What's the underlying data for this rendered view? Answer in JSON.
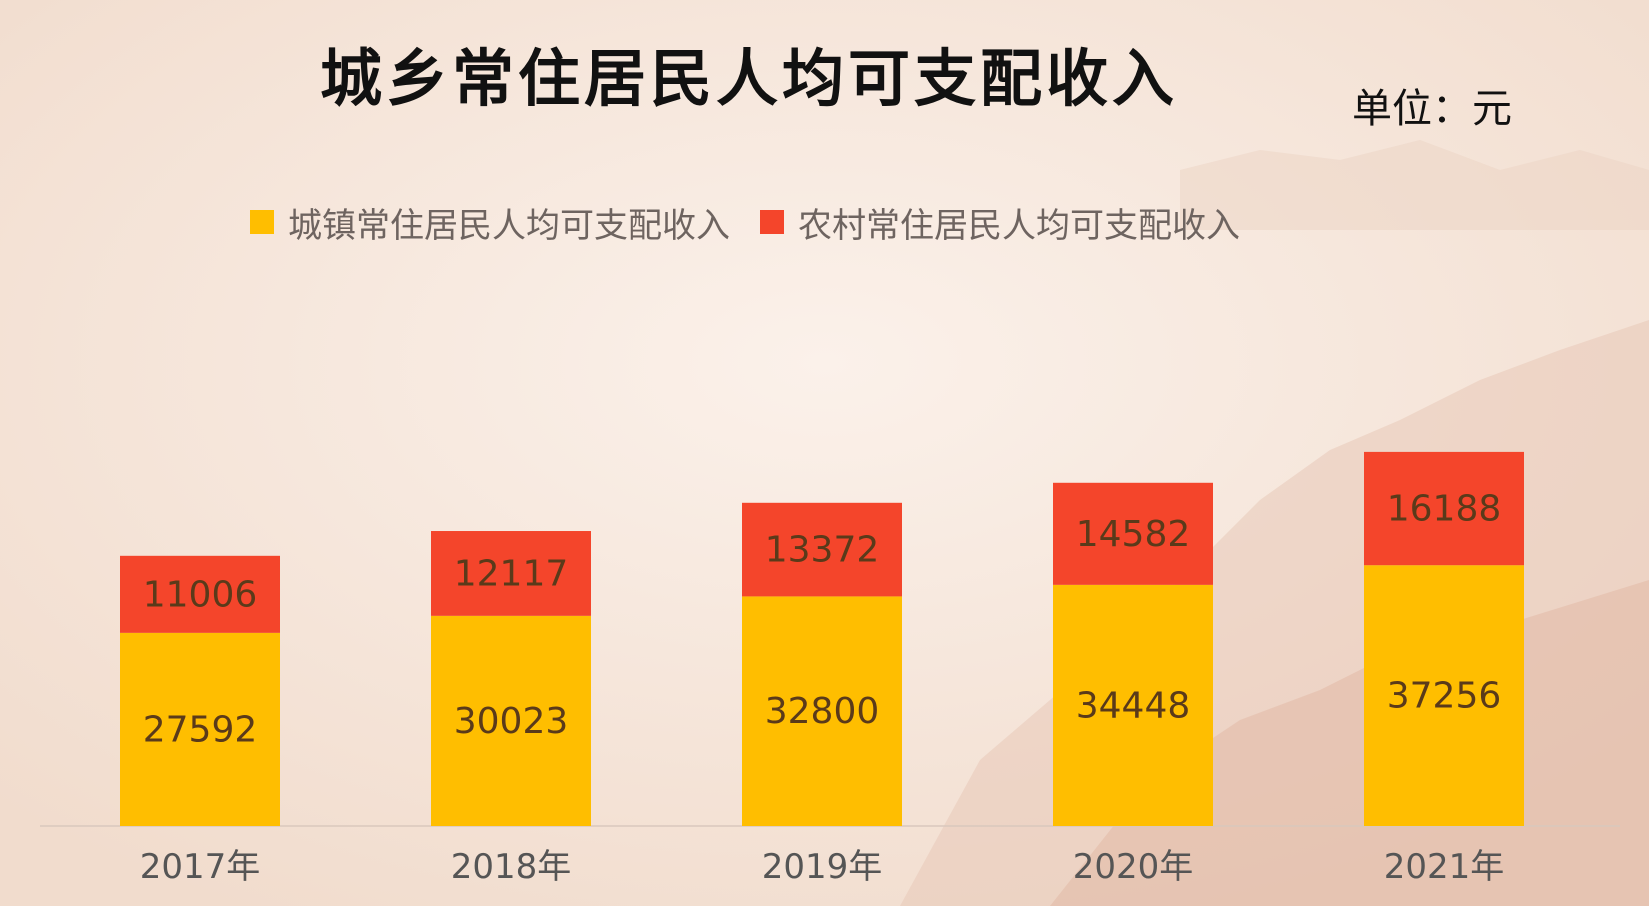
{
  "colors": {
    "urban": "#FFBE00",
    "rural": "#F4452B",
    "background": "#f6e8dd"
  },
  "chart_data": {
    "type": "bar",
    "stacked": true,
    "title": "城乡常住居民人均可支配收入",
    "unit": "单位：元",
    "categories": [
      "2017年",
      "2018年",
      "2019年",
      "2020年",
      "2021年"
    ],
    "series": [
      {
        "name": "城镇常住居民人均可支配收入",
        "values": [
          27592,
          30023,
          32800,
          34448,
          37256
        ]
      },
      {
        "name": "农村常住居民人均可支配收入",
        "values": [
          11006,
          12117,
          13372,
          14582,
          16188
        ]
      }
    ],
    "legend_position": "top",
    "grid": false,
    "ylim": [
      0,
      55000
    ]
  }
}
